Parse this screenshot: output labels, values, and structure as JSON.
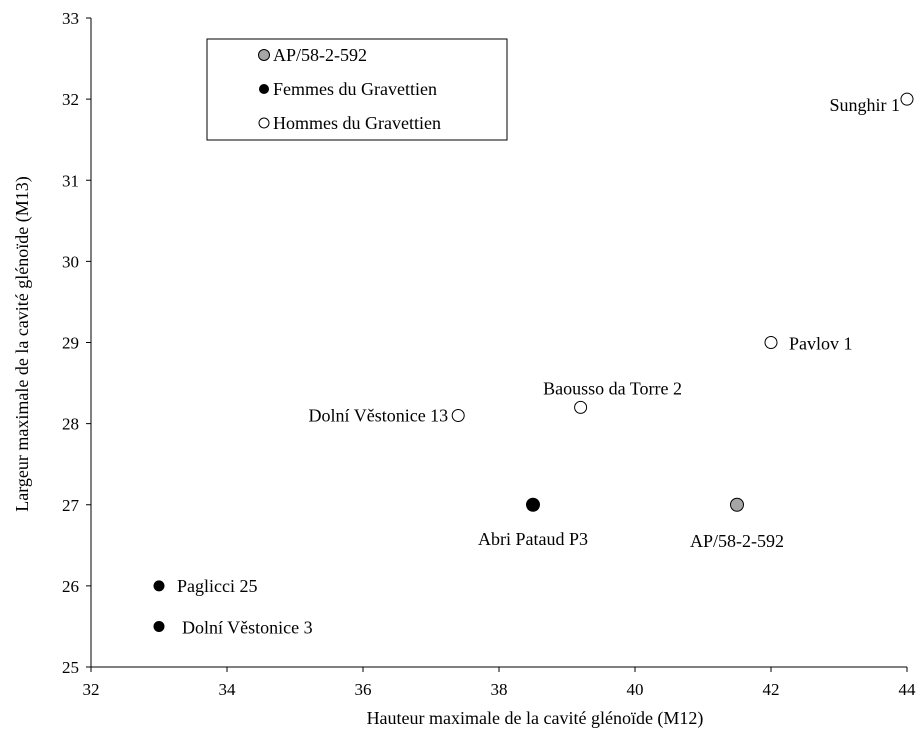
{
  "chart_data": {
    "type": "scatter",
    "xlabel": "Hauteur maximale  de la cavité glénoïde (M12)",
    "ylabel": "Largeur maximale de la cavité glénoïde (M13)",
    "xlim": [
      32,
      44
    ],
    "ylim": [
      25,
      33
    ],
    "x_ticks": [
      "32",
      "34",
      "36",
      "38",
      "40",
      "42",
      "44"
    ],
    "y_ticks": [
      "25",
      "26",
      "27",
      "28",
      "29",
      "30",
      "31",
      "32",
      "33"
    ],
    "grid": false,
    "legend_position": "top-left",
    "legend": [
      {
        "label": "AP/58-2-592",
        "group": "ap"
      },
      {
        "label": "Femmes du Gravettien",
        "group": "femmes"
      },
      {
        "label": "Hommes du Gravettien",
        "group": "hommes"
      }
    ],
    "series": [
      {
        "group": "ap",
        "color": "#a6a6a6",
        "points": [
          {
            "x": 41.5,
            "y": 27.0,
            "label": "AP/58-2-592"
          }
        ]
      },
      {
        "group": "femmes",
        "color": "#000000",
        "points": [
          {
            "x": 38.5,
            "y": 27.0,
            "label": "Abri Pataud P3"
          },
          {
            "x": 33.0,
            "y": 26.0,
            "label": "Paglicci 25"
          },
          {
            "x": 33.0,
            "y": 25.5,
            "label": "Dolní Věstonice 3"
          }
        ]
      },
      {
        "group": "hommes",
        "color": "#ffffff",
        "points": [
          {
            "x": 44.0,
            "y": 32.0,
            "label": "Sunghir 1"
          },
          {
            "x": 42.0,
            "y": 29.0,
            "label": "Pavlov 1"
          },
          {
            "x": 39.2,
            "y": 28.2,
            "label": "Baousso da Torre 2"
          },
          {
            "x": 37.4,
            "y": 28.1,
            "label": "Dolní Věstonice 13"
          }
        ]
      }
    ]
  }
}
